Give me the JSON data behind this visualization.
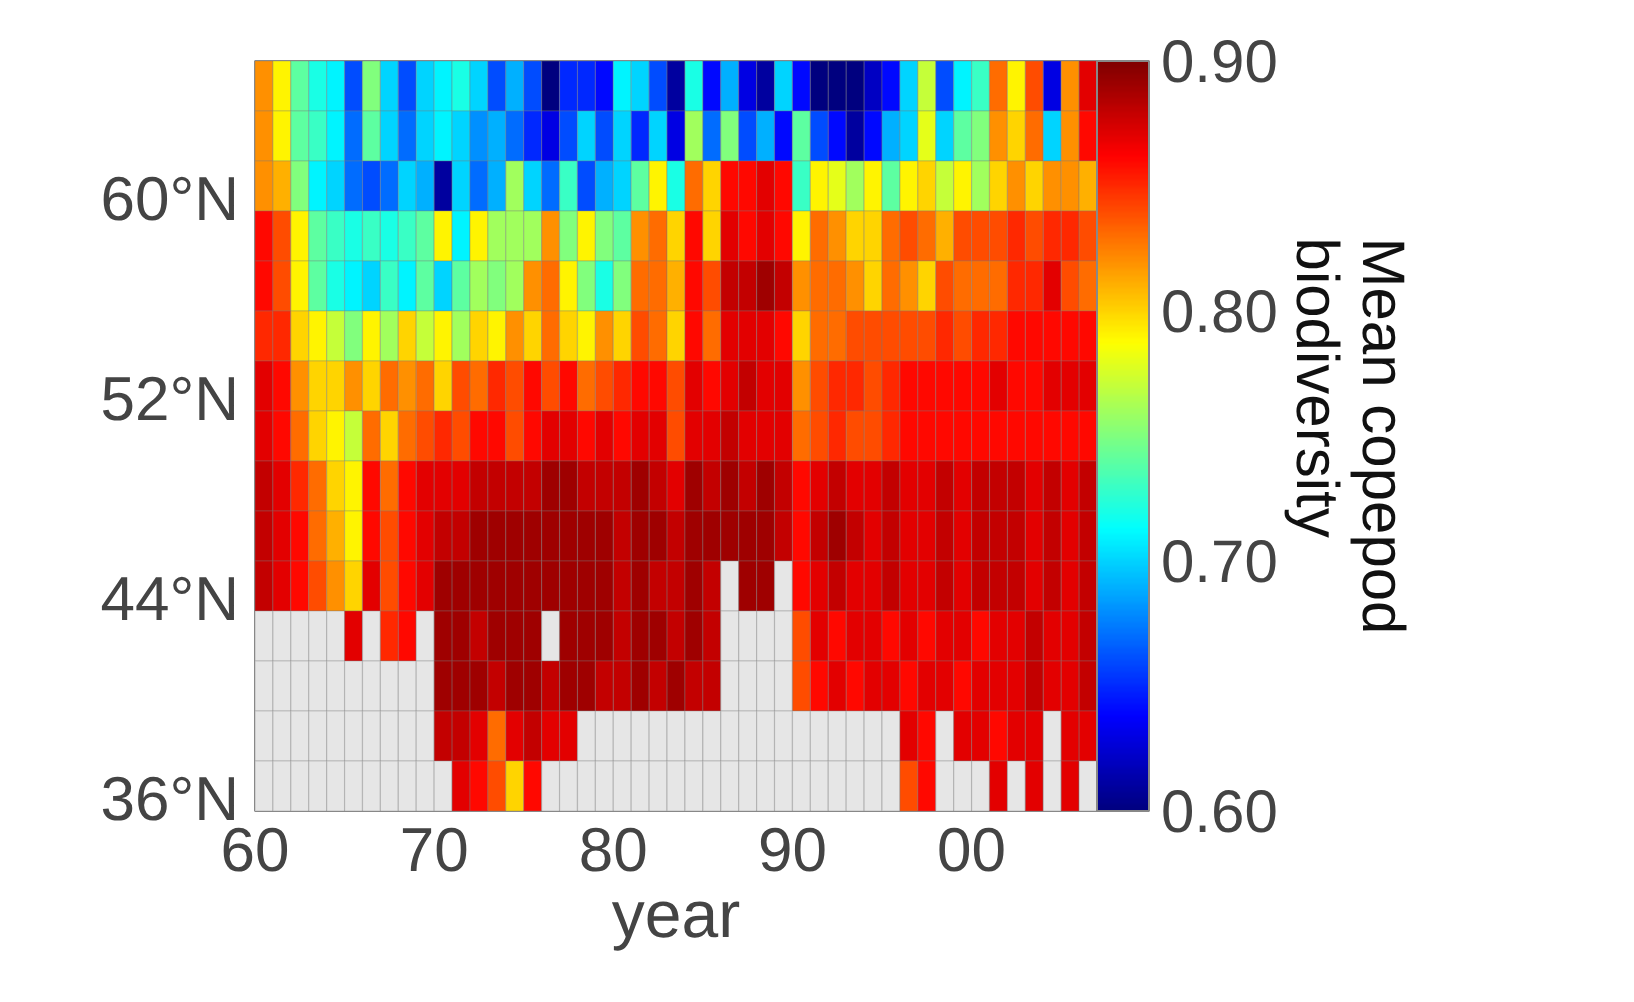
{
  "chart_data": {
    "type": "heatmap",
    "xlabel": "year",
    "clabel": "Mean copepod biodiversity",
    "x": [
      1960.5,
      1961.5,
      1962.5,
      1963.5,
      1964.5,
      1965.5,
      1966.5,
      1967.5,
      1968.5,
      1969.5,
      1970.5,
      1971.5,
      1972.5,
      1973.5,
      1974.5,
      1975.5,
      1976.5,
      1977.5,
      1978.5,
      1979.5,
      1980.5,
      1981.5,
      1982.5,
      1983.5,
      1984.5,
      1985.5,
      1986.5,
      1987.5,
      1988.5,
      1989.5,
      1990.5,
      1991.5,
      1992.5,
      1993.5,
      1994.5,
      1995.5,
      1996.5,
      1997.5,
      1998.5,
      1999.5,
      2000.5,
      2001.5,
      2002.5,
      2003.5,
      2004.5,
      2005.5,
      2006.5
    ],
    "y": [
      64.5,
      62.5,
      60.5,
      58.5,
      56.5,
      54.5,
      52.5,
      50.5,
      48.5,
      46.5,
      44.5,
      42.5,
      40.5,
      38.5,
      36.5
    ],
    "xlim": [
      1960,
      2007
    ],
    "ylim": [
      35.5,
      65.5
    ],
    "xticks": [
      {
        "value": 1960,
        "label": "60"
      },
      {
        "value": 1970,
        "label": "70"
      },
      {
        "value": 1980,
        "label": "80"
      },
      {
        "value": 1990,
        "label": "90"
      },
      {
        "value": 2000,
        "label": "00"
      }
    ],
    "yticks": [
      {
        "value": 36,
        "label": "36°N"
      },
      {
        "value": 44,
        "label": "44°N"
      },
      {
        "value": 52,
        "label": "52°N"
      },
      {
        "value": 60,
        "label": "60°N"
      }
    ],
    "clim": [
      0.6,
      0.9
    ],
    "cticks": [
      {
        "value": 0.6,
        "label": "0.60"
      },
      {
        "value": 0.7,
        "label": "0.70"
      },
      {
        "value": 0.8,
        "label": "0.80"
      },
      {
        "value": 0.9,
        "label": "0.90"
      }
    ],
    "cells": [
      [
        0.82,
        0.79,
        0.74,
        0.72,
        0.71,
        0.66,
        0.75,
        0.7,
        0.66,
        0.7,
        0.71,
        0.72,
        0.7,
        0.66,
        0.69,
        0.66,
        0.6,
        0.65,
        0.65,
        0.64,
        0.71,
        0.7,
        0.66,
        0.61,
        0.72,
        0.64,
        0.69,
        0.63,
        0.61,
        0.7,
        0.64,
        0.6,
        0.6,
        0.6,
        0.62,
        0.64,
        0.7,
        0.77,
        0.66,
        0.71,
        0.73,
        0.83,
        0.79,
        0.84,
        0.63,
        0.82,
        0.87
      ],
      [
        0.82,
        0.79,
        0.74,
        0.73,
        0.71,
        0.67,
        0.74,
        0.7,
        0.67,
        0.7,
        0.71,
        0.7,
        0.68,
        0.69,
        0.67,
        0.65,
        0.63,
        0.66,
        0.7,
        0.66,
        0.7,
        0.65,
        0.7,
        0.63,
        0.76,
        0.67,
        0.75,
        0.66,
        0.69,
        0.64,
        0.74,
        0.66,
        0.64,
        0.61,
        0.64,
        0.69,
        0.7,
        0.78,
        0.7,
        0.74,
        0.75,
        0.82,
        0.8,
        0.83,
        0.7,
        0.82,
        0.86
      ],
      [
        0.82,
        0.81,
        0.75,
        0.71,
        0.7,
        0.67,
        0.66,
        0.67,
        0.7,
        0.69,
        0.61,
        0.7,
        0.67,
        0.69,
        0.76,
        0.7,
        0.67,
        0.73,
        0.66,
        0.69,
        0.7,
        0.74,
        0.79,
        0.72,
        0.83,
        0.8,
        0.86,
        0.86,
        0.87,
        0.86,
        0.73,
        0.79,
        0.78,
        0.76,
        0.79,
        0.74,
        0.79,
        0.8,
        0.77,
        0.79,
        0.76,
        0.8,
        0.82,
        0.8,
        0.82,
        0.82,
        0.81
      ],
      [
        0.86,
        0.84,
        0.79,
        0.74,
        0.73,
        0.72,
        0.73,
        0.72,
        0.73,
        0.74,
        0.79,
        0.71,
        0.79,
        0.76,
        0.76,
        0.76,
        0.82,
        0.75,
        0.79,
        0.75,
        0.74,
        0.82,
        0.83,
        0.8,
        0.86,
        0.8,
        0.87,
        0.86,
        0.87,
        0.86,
        0.79,
        0.83,
        0.82,
        0.8,
        0.8,
        0.83,
        0.84,
        0.83,
        0.81,
        0.84,
        0.84,
        0.84,
        0.85,
        0.84,
        0.85,
        0.85,
        0.84
      ],
      [
        0.86,
        0.84,
        0.79,
        0.74,
        0.72,
        0.71,
        0.7,
        0.73,
        0.71,
        0.74,
        0.7,
        0.74,
        0.76,
        0.75,
        0.76,
        0.82,
        0.83,
        0.79,
        0.75,
        0.72,
        0.75,
        0.83,
        0.83,
        0.81,
        0.86,
        0.84,
        0.88,
        0.88,
        0.89,
        0.88,
        0.82,
        0.83,
        0.83,
        0.82,
        0.8,
        0.83,
        0.82,
        0.8,
        0.84,
        0.83,
        0.83,
        0.83,
        0.85,
        0.85,
        0.87,
        0.84,
        0.83
      ],
      [
        0.85,
        0.85,
        0.8,
        0.79,
        0.77,
        0.75,
        0.79,
        0.76,
        0.8,
        0.77,
        0.79,
        0.76,
        0.8,
        0.79,
        0.82,
        0.8,
        0.83,
        0.8,
        0.79,
        0.82,
        0.8,
        0.84,
        0.83,
        0.8,
        0.86,
        0.83,
        0.87,
        0.87,
        0.87,
        0.86,
        0.8,
        0.83,
        0.83,
        0.84,
        0.84,
        0.84,
        0.84,
        0.84,
        0.85,
        0.84,
        0.85,
        0.85,
        0.86,
        0.86,
        0.86,
        0.86,
        0.86
      ],
      [
        0.87,
        0.86,
        0.82,
        0.8,
        0.8,
        0.82,
        0.8,
        0.83,
        0.82,
        0.83,
        0.8,
        0.84,
        0.83,
        0.85,
        0.84,
        0.86,
        0.84,
        0.86,
        0.83,
        0.84,
        0.85,
        0.86,
        0.86,
        0.84,
        0.87,
        0.86,
        0.87,
        0.88,
        0.87,
        0.87,
        0.82,
        0.84,
        0.85,
        0.85,
        0.84,
        0.85,
        0.86,
        0.86,
        0.86,
        0.86,
        0.86,
        0.87,
        0.86,
        0.86,
        0.87,
        0.87,
        0.87
      ],
      [
        0.87,
        0.86,
        0.83,
        0.8,
        0.79,
        0.77,
        0.83,
        0.8,
        0.83,
        0.84,
        0.85,
        0.84,
        0.86,
        0.86,
        0.84,
        0.86,
        0.87,
        0.87,
        0.86,
        0.87,
        0.86,
        0.87,
        0.87,
        0.84,
        0.87,
        0.87,
        0.88,
        0.87,
        0.87,
        0.87,
        0.83,
        0.84,
        0.85,
        0.84,
        0.84,
        0.85,
        0.86,
        0.86,
        0.86,
        0.86,
        0.86,
        0.86,
        0.86,
        0.86,
        0.86,
        0.86,
        0.86
      ],
      [
        0.88,
        0.87,
        0.85,
        0.83,
        0.8,
        0.79,
        0.86,
        0.83,
        0.86,
        0.87,
        0.87,
        0.87,
        0.88,
        0.88,
        0.88,
        0.88,
        0.89,
        0.89,
        0.88,
        0.88,
        0.88,
        0.89,
        0.88,
        0.87,
        0.89,
        0.88,
        0.89,
        0.88,
        0.89,
        0.88,
        0.86,
        0.87,
        0.88,
        0.87,
        0.87,
        0.88,
        0.87,
        0.87,
        0.88,
        0.87,
        0.88,
        0.88,
        0.88,
        0.87,
        0.88,
        0.87,
        0.88
      ],
      [
        0.88,
        0.87,
        0.86,
        0.83,
        0.81,
        0.79,
        0.86,
        0.84,
        0.86,
        0.87,
        0.88,
        0.88,
        0.89,
        0.89,
        0.89,
        0.89,
        0.89,
        0.89,
        0.89,
        0.89,
        0.88,
        0.89,
        0.89,
        0.88,
        0.89,
        0.89,
        0.89,
        0.89,
        0.89,
        0.88,
        0.86,
        0.88,
        0.89,
        0.88,
        0.87,
        0.88,
        0.87,
        0.87,
        0.88,
        0.87,
        0.88,
        0.88,
        0.88,
        0.87,
        0.88,
        0.87,
        0.88
      ],
      [
        0.88,
        0.87,
        0.86,
        0.84,
        0.82,
        0.8,
        0.87,
        0.84,
        0.86,
        0.87,
        0.89,
        0.89,
        0.89,
        0.89,
        0.89,
        0.89,
        0.89,
        0.89,
        0.89,
        0.89,
        0.88,
        0.89,
        0.88,
        0.88,
        0.89,
        0.88,
        null,
        0.89,
        0.89,
        null,
        0.86,
        0.87,
        0.88,
        0.87,
        0.87,
        0.88,
        0.87,
        0.87,
        0.88,
        0.87,
        0.88,
        0.88,
        0.88,
        0.87,
        0.88,
        0.87,
        0.88
      ],
      [
        null,
        null,
        null,
        null,
        null,
        0.87,
        null,
        0.85,
        0.86,
        null,
        0.89,
        0.89,
        0.88,
        0.89,
        0.89,
        0.89,
        null,
        0.89,
        0.89,
        0.89,
        0.88,
        0.89,
        0.89,
        0.88,
        0.89,
        0.88,
        null,
        null,
        null,
        null,
        0.84,
        0.87,
        0.86,
        0.87,
        0.87,
        0.86,
        0.87,
        0.86,
        0.87,
        0.87,
        0.86,
        0.87,
        0.87,
        0.88,
        0.87,
        0.87,
        0.88
      ],
      [
        null,
        null,
        null,
        null,
        null,
        null,
        null,
        null,
        null,
        null,
        0.89,
        0.89,
        0.89,
        0.88,
        0.89,
        0.89,
        0.88,
        0.89,
        0.89,
        0.88,
        0.88,
        0.89,
        0.88,
        0.89,
        0.88,
        0.88,
        null,
        null,
        null,
        null,
        0.84,
        0.86,
        0.87,
        0.86,
        0.87,
        0.87,
        0.86,
        0.87,
        0.87,
        0.86,
        0.87,
        0.87,
        0.87,
        0.88,
        0.87,
        0.87,
        0.88
      ],
      [
        null,
        null,
        null,
        null,
        null,
        null,
        null,
        null,
        null,
        null,
        0.88,
        0.88,
        0.87,
        0.83,
        0.87,
        0.88,
        0.87,
        0.87,
        null,
        null,
        null,
        null,
        null,
        null,
        null,
        null,
        null,
        null,
        null,
        null,
        null,
        null,
        null,
        null,
        null,
        null,
        0.87,
        0.86,
        null,
        0.87,
        0.87,
        0.86,
        0.87,
        0.87,
        null,
        0.87,
        0.87
      ],
      [
        null,
        null,
        null,
        null,
        null,
        null,
        null,
        null,
        null,
        null,
        null,
        0.87,
        0.86,
        0.84,
        0.8,
        0.86,
        null,
        null,
        null,
        null,
        null,
        null,
        null,
        null,
        null,
        null,
        null,
        null,
        null,
        null,
        null,
        null,
        null,
        null,
        null,
        null,
        0.84,
        0.86,
        null,
        null,
        null,
        0.87,
        null,
        0.87,
        null,
        0.87,
        null
      ]
    ]
  }
}
